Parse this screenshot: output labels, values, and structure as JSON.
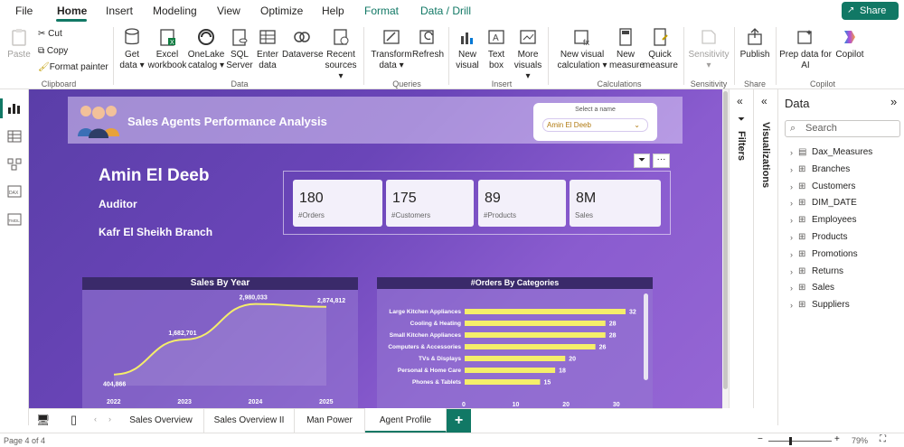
{
  "menu": {
    "items": [
      "File",
      "Home",
      "Insert",
      "Modeling",
      "View",
      "Optimize",
      "Help",
      "Format",
      "Data / Drill"
    ],
    "active": "Home",
    "share_label": "Share"
  },
  "ribbon": {
    "clipboard": {
      "paste": "Paste",
      "cut": "Cut",
      "copy": "Copy",
      "format_painter": "Format painter",
      "group": "Clipboard"
    },
    "data": {
      "get_data": "Get data ▾",
      "excel": "Excel workbook",
      "onelake": "OneLake catalog ▾",
      "sql": "SQL Server",
      "enter": "Enter data",
      "dataverse": "Dataverse",
      "recent": "Recent sources ▾",
      "group": "Data"
    },
    "queries": {
      "transform": "Transform data ▾",
      "refresh": "Refresh",
      "group": "Queries"
    },
    "insert": {
      "new_visual": "New visual",
      "text_box": "Text box",
      "more_visuals": "More visuals ▾",
      "group": "Insert"
    },
    "calculations": {
      "new_visual_calc": "New visual calculation ▾",
      "new_measure": "New measure",
      "quick_measure": "Quick measure",
      "group": "Calculations"
    },
    "sensitivity": {
      "btn": "Sensitivity ▾",
      "group": "Sensitivity"
    },
    "share": {
      "publish": "Publish",
      "group": "Share"
    },
    "copilot": {
      "prep": "Prep data for AI",
      "copilot": "Copilot",
      "group": "Copilot"
    }
  },
  "report": {
    "title": "Sales Agents Performance Analysis",
    "slicer_label": "Select a name",
    "slicer_value": "Amin El Deeb",
    "agent_name": "Amin El Deeb",
    "agent_role": "Auditor",
    "agent_branch": "Kafr El Sheikh Branch",
    "kpis": [
      {
        "value": "180",
        "label": "#Orders"
      },
      {
        "value": "175",
        "label": "#Customers"
      },
      {
        "value": "89",
        "label": "#Products"
      },
      {
        "value": "8M",
        "label": "Sales"
      }
    ]
  },
  "chart_data": [
    {
      "type": "line",
      "title": "Sales By Year",
      "x": [
        "2022",
        "2023",
        "2024",
        "2025"
      ],
      "series": [
        {
          "values": [
            404866,
            1682701,
            2980033,
            2874812
          ]
        }
      ],
      "data_labels": [
        "404,866",
        "1,682,701",
        "2,980,033",
        "2,874,812"
      ],
      "line_color": "#f5ee6a"
    },
    {
      "type": "bar",
      "title": "#Orders By Categories",
      "categories": [
        "Large Kitchen Appliances",
        "Cooling & Heating",
        "Small Kitchen Appliances",
        "Computers & Accessories",
        "TVs & Displays",
        "Personal & Home Care",
        "Phones & Tablets"
      ],
      "values": [
        32,
        28,
        28,
        26,
        20,
        18,
        15
      ],
      "xticks": [
        "0",
        "10",
        "20",
        "30"
      ],
      "xlim": [
        0,
        32
      ],
      "bar_color": "#f5ee6a"
    }
  ],
  "panes": {
    "filters": "Filters",
    "visualizations": "Visualizations",
    "data_title": "Data",
    "search_placeholder": "Search",
    "fields": [
      "Dax_Measures",
      "Branches",
      "Customers",
      "DIM_DATE",
      "Employees",
      "Products",
      "Promotions",
      "Returns",
      "Sales",
      "Suppliers"
    ]
  },
  "tabs": [
    "Sales Overview",
    "Sales Overview II",
    "Man Power",
    "Agent Profile"
  ],
  "active_tab": "Agent Profile",
  "add_tab": "+",
  "status": {
    "page": "Page 4 of 4",
    "zoom": "79%"
  },
  "colors": {
    "accent": "#117865",
    "bar": "#f5ee6a",
    "header": "#3a2a6a"
  }
}
